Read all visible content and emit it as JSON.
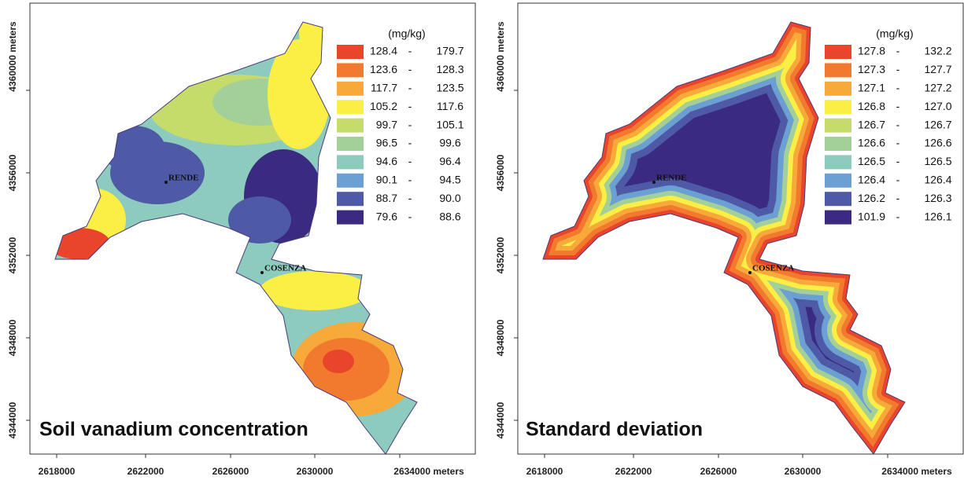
{
  "panels": [
    {
      "title": "Soil vanadium concentration",
      "unit": "(mg/kg)",
      "legend": [
        {
          "low": "128.4",
          "high": "179.7",
          "color": "#e8452b"
        },
        {
          "low": "123.6",
          "high": "128.3",
          "color": "#f27a2e"
        },
        {
          "low": "117.7",
          "high": "123.5",
          "color": "#f7a93a"
        },
        {
          "low": "105.2",
          "high": "117.6",
          "color": "#fbee45"
        },
        {
          "low": "99.7",
          "high": "105.1",
          "color": "#c5dc6b"
        },
        {
          "low": "96.5",
          "high": "99.6",
          "color": "#a3cf99"
        },
        {
          "low": "94.6",
          "high": "96.4",
          "color": "#8ccbbd"
        },
        {
          "low": "90.1",
          "high": "94.5",
          "color": "#6c9fd2"
        },
        {
          "low": "88.7",
          "high": "90.0",
          "color": "#4e5aa6"
        },
        {
          "low": "79.6",
          "high": "88.6",
          "color": "#3a2a80"
        }
      ],
      "yticks": [
        "4360000 meters",
        "4356000",
        "4352000",
        "4348000",
        "4344000"
      ],
      "xticks": [
        "2618000",
        "2622000",
        "2626000",
        "2630000",
        "2634000 meters"
      ],
      "places": [
        "RENDE",
        "COSENZA"
      ]
    },
    {
      "title": "Standard deviation",
      "unit": "(mg/kg)",
      "legend": [
        {
          "low": "127.8",
          "high": "132.2",
          "color": "#e8452b"
        },
        {
          "low": "127.3",
          "high": "127.7",
          "color": "#f27a2e"
        },
        {
          "low": "127.1",
          "high": "127.2",
          "color": "#f7a93a"
        },
        {
          "low": "126.8",
          "high": "127.0",
          "color": "#fbee45"
        },
        {
          "low": "126.7",
          "high": "126.7",
          "color": "#c5dc6b"
        },
        {
          "low": "126.6",
          "high": "126.6",
          "color": "#a3cf99"
        },
        {
          "low": "126.5",
          "high": "126.5",
          "color": "#8ccbbd"
        },
        {
          "low": "126.4",
          "high": "126.4",
          "color": "#6c9fd2"
        },
        {
          "low": "126.2",
          "high": "126.3",
          "color": "#4e5aa6"
        },
        {
          "low": "101.9",
          "high": "126.1",
          "color": "#3a2a80"
        }
      ],
      "yticks": [
        "4360000 meters",
        "4356000",
        "4352000",
        "4348000",
        "4344000"
      ],
      "xticks": [
        "2618000",
        "2622000",
        "2626000",
        "2630000",
        "2634000 meters"
      ],
      "places": [
        "RENDE",
        "COSENZA"
      ]
    }
  ]
}
